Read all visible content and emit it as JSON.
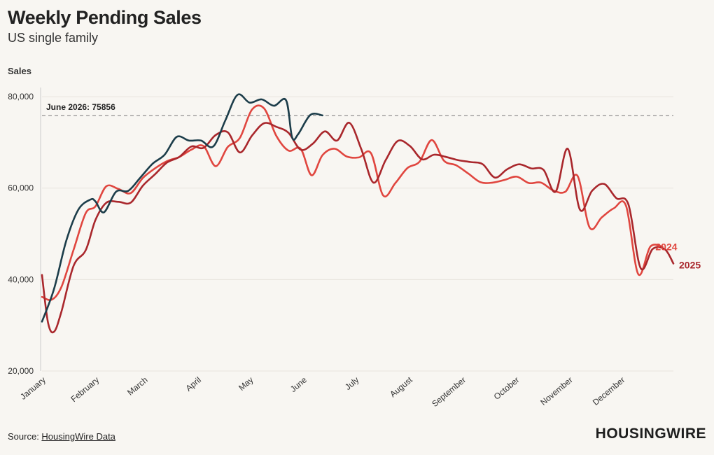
{
  "title": "Weekly Pending Sales",
  "subtitle": "US single family",
  "source": {
    "prefix": "Source: ",
    "link_text": "HousingWire Data"
  },
  "logo": "HOUSINGWIRE",
  "colors": {
    "2024": "#e0463f",
    "2025": "#a9272c",
    "2026": "#1c3d4a",
    "reference": "#777777",
    "grid": "#e7e4de",
    "background": "#f8f6f2"
  },
  "chart_data": {
    "type": "line",
    "ylabel": "Sales",
    "ylim": [
      20000,
      82000
    ],
    "y_ticks": [
      20000,
      40000,
      60000,
      80000
    ],
    "y_tick_labels": [
      "20,000",
      "40,000",
      "60,000",
      "80,000"
    ],
    "x_range_weeks": [
      1,
      53
    ],
    "month_ticks": [
      {
        "label": "January",
        "week": 1
      },
      {
        "label": "February",
        "week": 5.4
      },
      {
        "label": "March",
        "week": 9.4
      },
      {
        "label": "April",
        "week": 13.8
      },
      {
        "label": "May",
        "week": 18.1
      },
      {
        "label": "June",
        "week": 22.5
      },
      {
        "label": "July",
        "week": 26.8
      },
      {
        "label": "August",
        "week": 31.2
      },
      {
        "label": "September",
        "week": 35.6
      },
      {
        "label": "October",
        "week": 40.0
      },
      {
        "label": "November",
        "week": 44.4
      },
      {
        "label": "December",
        "week": 48.7
      }
    ],
    "reference_line": {
      "value": 75856,
      "label": "June 2026: 75856"
    },
    "grid": true,
    "series": [
      {
        "name": "2024",
        "key": "2024",
        "end_label": true,
        "points": [
          [
            1,
            36200
          ],
          [
            1.8,
            35600
          ],
          [
            2.6,
            38400
          ],
          [
            3.6,
            46500
          ],
          [
            4.6,
            54500
          ],
          [
            5.4,
            56000
          ],
          [
            6.3,
            60400
          ],
          [
            7.3,
            59800
          ],
          [
            8.3,
            58900
          ],
          [
            9.3,
            62200
          ],
          [
            10.3,
            64300
          ],
          [
            11.3,
            65900
          ],
          [
            12.3,
            66800
          ],
          [
            13.3,
            68400
          ],
          [
            14.3,
            69200
          ],
          [
            15.3,
            64800
          ],
          [
            16.3,
            69000
          ],
          [
            17.3,
            71000
          ],
          [
            18.3,
            77200
          ],
          [
            19.3,
            77400
          ],
          [
            20.3,
            71400
          ],
          [
            21.3,
            68200
          ],
          [
            22.3,
            68600
          ],
          [
            23.2,
            62800
          ],
          [
            24.1,
            67200
          ],
          [
            25.1,
            68600
          ],
          [
            26.1,
            66900
          ],
          [
            27.1,
            66700
          ],
          [
            28.1,
            67600
          ],
          [
            29.1,
            58400
          ],
          [
            30.1,
            61100
          ],
          [
            31.1,
            64400
          ],
          [
            32.1,
            65800
          ],
          [
            33.1,
            70500
          ],
          [
            34.1,
            66000
          ],
          [
            35.1,
            65000
          ],
          [
            36.1,
            63200
          ],
          [
            37.1,
            61300
          ],
          [
            38.1,
            61200
          ],
          [
            39.1,
            61800
          ],
          [
            40.1,
            62500
          ],
          [
            41.1,
            61100
          ],
          [
            42.1,
            61200
          ],
          [
            43.1,
            59500
          ],
          [
            44.1,
            59200
          ],
          [
            45.1,
            62700
          ],
          [
            46.1,
            51400
          ],
          [
            47.1,
            53600
          ],
          [
            48.1,
            55600
          ],
          [
            49.1,
            56100
          ],
          [
            50.1,
            41200
          ],
          [
            51.1,
            47200
          ],
          [
            52.1,
            47200
          ]
        ]
      },
      {
        "name": "2025",
        "key": "2025",
        "end_label": true,
        "points": [
          [
            1,
            41000
          ],
          [
            1.5,
            30500
          ],
          [
            2.0,
            28600
          ],
          [
            2.6,
            33000
          ],
          [
            3.6,
            43000
          ],
          [
            4.6,
            46400
          ],
          [
            5.4,
            53000
          ],
          [
            6.3,
            56800
          ],
          [
            7.3,
            57000
          ],
          [
            8.3,
            56800
          ],
          [
            9.3,
            60500
          ],
          [
            10.3,
            63000
          ],
          [
            11.3,
            65600
          ],
          [
            12.3,
            66800
          ],
          [
            13.3,
            69100
          ],
          [
            14.3,
            68800
          ],
          [
            15.3,
            71600
          ],
          [
            16.3,
            72200
          ],
          [
            17.3,
            67800
          ],
          [
            18.3,
            71500
          ],
          [
            19.3,
            74200
          ],
          [
            20.3,
            73400
          ],
          [
            21.3,
            72100
          ],
          [
            22.3,
            68400
          ],
          [
            23.3,
            69700
          ],
          [
            24.3,
            72400
          ],
          [
            25.3,
            70400
          ],
          [
            26.3,
            74300
          ],
          [
            27.3,
            68500
          ],
          [
            28.3,
            61200
          ],
          [
            29.3,
            66100
          ],
          [
            30.3,
            70300
          ],
          [
            31.3,
            69200
          ],
          [
            32.3,
            66300
          ],
          [
            33.3,
            67300
          ],
          [
            34.3,
            66800
          ],
          [
            35.3,
            66100
          ],
          [
            36.3,
            65700
          ],
          [
            37.3,
            65200
          ],
          [
            38.3,
            62300
          ],
          [
            39.3,
            64100
          ],
          [
            40.3,
            65200
          ],
          [
            41.3,
            64300
          ],
          [
            42.3,
            64000
          ],
          [
            43.3,
            59200
          ],
          [
            44.3,
            68600
          ],
          [
            45.3,
            55300
          ],
          [
            46.3,
            59400
          ],
          [
            47.3,
            60900
          ],
          [
            48.3,
            57800
          ],
          [
            49.3,
            56400
          ],
          [
            50.3,
            42500
          ],
          [
            51.3,
            46700
          ],
          [
            52.3,
            46600
          ],
          [
            53.0,
            43500
          ]
        ]
      },
      {
        "name": "2026",
        "key": "2026",
        "end_label": false,
        "points": [
          [
            1,
            30800
          ],
          [
            2.0,
            38000
          ],
          [
            3.0,
            48500
          ],
          [
            4.0,
            55300
          ],
          [
            5.0,
            57500
          ],
          [
            5.4,
            57100
          ],
          [
            6.1,
            54700
          ],
          [
            7.1,
            59200
          ],
          [
            8.1,
            59400
          ],
          [
            9.1,
            62300
          ],
          [
            10.1,
            65300
          ],
          [
            11.1,
            67300
          ],
          [
            12.1,
            71200
          ],
          [
            13.1,
            70400
          ],
          [
            14.1,
            70400
          ],
          [
            15.1,
            69100
          ],
          [
            16.1,
            74800
          ],
          [
            17.1,
            80400
          ],
          [
            18.1,
            78700
          ],
          [
            19.1,
            79400
          ],
          [
            20.1,
            78000
          ],
          [
            21.1,
            79200
          ],
          [
            21.6,
            71100
          ],
          [
            22.1,
            71800
          ],
          [
            23.1,
            76000
          ],
          [
            24.1,
            75900
          ]
        ]
      }
    ]
  }
}
